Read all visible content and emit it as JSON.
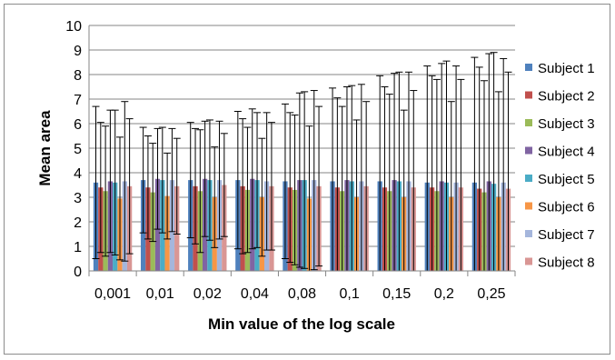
{
  "chart_data": {
    "type": "bar",
    "title": "",
    "xlabel": "Min value of the log scale",
    "ylabel": "Mean area",
    "ylim": [
      0,
      10
    ],
    "yticks": [
      0,
      1,
      2,
      3,
      4,
      5,
      6,
      7,
      8,
      9,
      10
    ],
    "grid": true,
    "legend_position": "right",
    "categories": [
      "0,001",
      "0,01",
      "0,02",
      "0,04",
      "0,08",
      "0,1",
      "0,15",
      "0,2",
      "0,25"
    ],
    "series": [
      {
        "name": "Subject 1",
        "color": "#4f81bd",
        "values": [
          3.6,
          3.7,
          3.7,
          3.7,
          3.65,
          3.65,
          3.65,
          3.6,
          3.6
        ],
        "error_upper": [
          6.7,
          5.85,
          6.05,
          6.5,
          6.8,
          7.45,
          7.95,
          8.35,
          8.7
        ]
      },
      {
        "name": "Subject 2",
        "color": "#c0504d",
        "values": [
          3.4,
          3.4,
          3.45,
          3.45,
          3.4,
          3.4,
          3.4,
          3.4,
          3.35
        ],
        "error_upper": [
          6.05,
          5.5,
          5.8,
          6.2,
          6.45,
          7.05,
          7.5,
          7.95,
          8.3
        ]
      },
      {
        "name": "Subject 3",
        "color": "#9bbb59",
        "values": [
          3.25,
          3.2,
          3.25,
          3.3,
          3.3,
          3.25,
          3.25,
          3.25,
          3.2
        ],
        "error_upper": [
          5.9,
          5.2,
          5.75,
          5.85,
          6.35,
          6.7,
          7.2,
          7.8,
          7.75
        ]
      },
      {
        "name": "Subject 4",
        "color": "#8064a2",
        "values": [
          3.65,
          3.75,
          3.75,
          3.75,
          3.7,
          3.7,
          3.7,
          3.65,
          3.65
        ],
        "error_upper": [
          6.55,
          5.8,
          6.1,
          6.6,
          7.25,
          7.5,
          8.05,
          8.45,
          8.85
        ]
      },
      {
        "name": "Subject 5",
        "color": "#4bacc6",
        "values": [
          3.6,
          3.7,
          3.7,
          3.7,
          3.7,
          3.65,
          3.65,
          3.6,
          3.55
        ],
        "error_upper": [
          6.55,
          5.85,
          6.15,
          6.45,
          7.3,
          7.55,
          8.1,
          8.55,
          8.9
        ]
      },
      {
        "name": "Subject 6",
        "color": "#f79646",
        "values": [
          2.95,
          3.05,
          3.0,
          3.0,
          2.95,
          3.0,
          3.0,
          3.0,
          3.0
        ],
        "error_upper": [
          5.45,
          4.8,
          5.05,
          5.4,
          5.9,
          6.15,
          6.55,
          6.9,
          7.3
        ]
      },
      {
        "name": "Subject 7",
        "color": "#a5b6dc",
        "values": [
          3.65,
          3.7,
          3.7,
          3.65,
          3.7,
          3.65,
          3.65,
          3.6,
          3.6
        ],
        "error_upper": [
          6.9,
          5.8,
          6.1,
          6.45,
          7.35,
          7.6,
          8.1,
          8.35,
          8.65
        ]
      },
      {
        "name": "Subject 8",
        "color": "#d99694",
        "values": [
          3.45,
          3.45,
          3.5,
          3.45,
          3.45,
          3.45,
          3.4,
          3.4,
          3.35
        ],
        "error_upper": [
          6.2,
          5.4,
          5.6,
          6.05,
          6.7,
          6.9,
          7.35,
          7.8,
          8.1
        ]
      }
    ]
  }
}
